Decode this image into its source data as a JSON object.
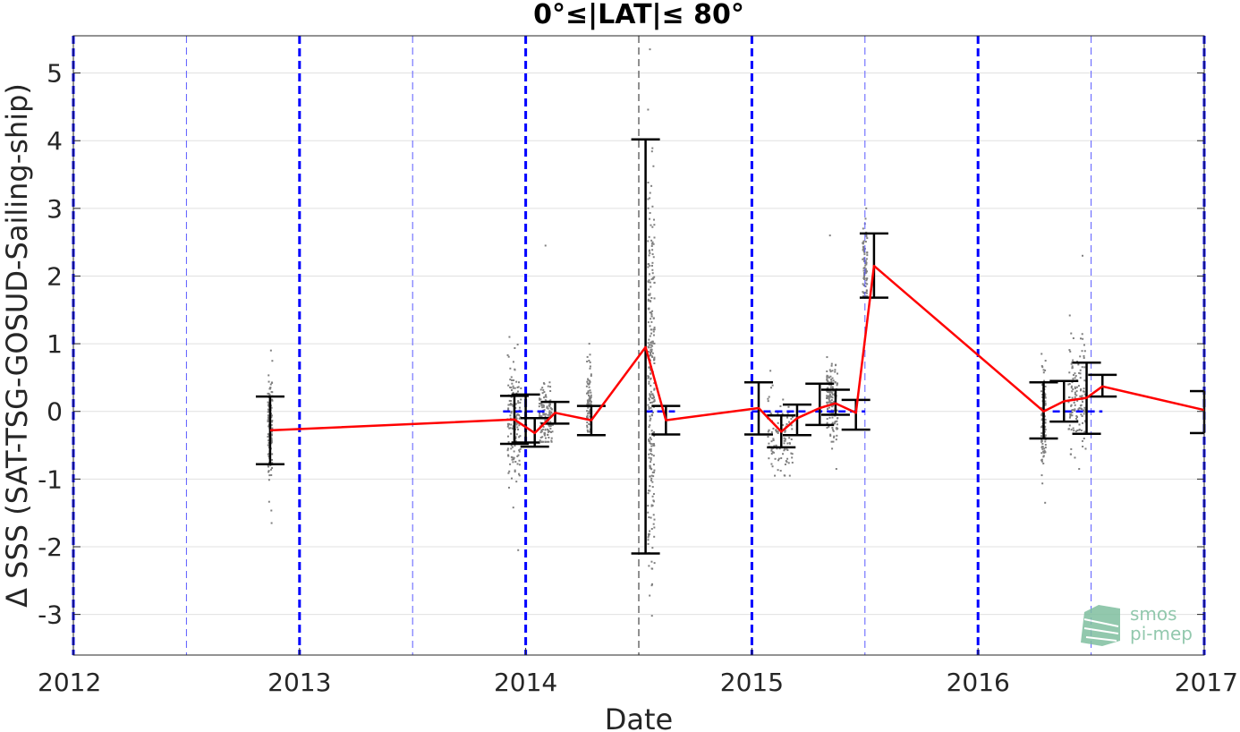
{
  "chart_data": {
    "type": "scatter",
    "title": "0°≤|LAT|≤ 80°",
    "xlabel": "Date",
    "ylabel": "Δ SSS (SAT-TSG-GOSUD-Sailing-ship)",
    "xlim": [
      2012,
      2017
    ],
    "ylim": [
      -3.6,
      5.55
    ],
    "xticks": [
      2012,
      2013,
      2014,
      2015,
      2016,
      2017
    ],
    "xtick_labels": [
      "2012",
      "2013",
      "2014",
      "2015",
      "2016",
      "2017"
    ],
    "yticks": [
      -3,
      -2,
      -1,
      0,
      1,
      2,
      3,
      4,
      5
    ],
    "ytick_labels": [
      "-3",
      "-2",
      "-1",
      "0",
      "1",
      "2",
      "3",
      "4",
      "5"
    ],
    "grid": "horizontal",
    "year_lines": [
      2012,
      2013,
      2014,
      2015,
      2016,
      2017
    ],
    "half_year_lines": [
      2012.5,
      2013.5,
      2014.5,
      2015.5,
      2016.5
    ],
    "mean_series": {
      "x": [
        2012.87,
        2013.95,
        2014.04,
        2014.13,
        2014.29,
        2014.53,
        2014.62,
        2015.03,
        2015.13,
        2015.2,
        2015.3,
        2015.37,
        2015.46,
        2015.54,
        2016.29,
        2016.38,
        2016.48,
        2016.55,
        2017.0
      ],
      "y": [
        -0.28,
        -0.12,
        -0.32,
        -0.02,
        -0.13,
        0.95,
        -0.13,
        0.05,
        -0.3,
        -0.1,
        0.05,
        0.12,
        -0.02,
        2.15,
        0.0,
        0.15,
        0.2,
        0.37,
        0.02
      ]
    },
    "error_bars": [
      {
        "x": 2012.87,
        "low": -0.78,
        "high": 0.22
      },
      {
        "x": 2013.95,
        "low": -0.48,
        "high": 0.23
      },
      {
        "x": 2014.0,
        "low": -0.46,
        "high": 0.25
      },
      {
        "x": 2014.04,
        "low": -0.52,
        "high": -0.1
      },
      {
        "x": 2014.13,
        "low": -0.18,
        "high": 0.14
      },
      {
        "x": 2014.29,
        "low": -0.35,
        "high": 0.08
      },
      {
        "x": 2014.53,
        "low": -2.1,
        "high": 4.02
      },
      {
        "x": 2014.62,
        "low": -0.34,
        "high": 0.08
      },
      {
        "x": 2015.03,
        "low": -0.34,
        "high": 0.43
      },
      {
        "x": 2015.13,
        "low": -0.53,
        "high": -0.06
      },
      {
        "x": 2015.2,
        "low": -0.35,
        "high": 0.1
      },
      {
        "x": 2015.3,
        "low": -0.2,
        "high": 0.41
      },
      {
        "x": 2015.37,
        "low": -0.05,
        "high": 0.32
      },
      {
        "x": 2015.46,
        "low": -0.27,
        "high": 0.17
      },
      {
        "x": 2015.54,
        "low": 1.68,
        "high": 2.63
      },
      {
        "x": 2016.29,
        "low": -0.4,
        "high": 0.43
      },
      {
        "x": 2016.38,
        "low": -0.15,
        "high": 0.45
      },
      {
        "x": 2016.48,
        "low": -0.33,
        "high": 0.72
      },
      {
        "x": 2016.55,
        "low": 0.22,
        "high": 0.54
      },
      {
        "x": 2017.0,
        "low": -0.32,
        "high": 0.3
      }
    ],
    "median_segments": [
      {
        "x0": 2013.9,
        "x1": 2014.0,
        "y": 0.0
      },
      {
        "x0": 2014.0,
        "x1": 2014.1,
        "y": 0.0
      },
      {
        "x0": 2014.53,
        "x1": 2014.66,
        "y": 0.0
      },
      {
        "x0": 2015.0,
        "x1": 2015.24,
        "y": 0.0
      },
      {
        "x0": 2015.28,
        "x1": 2015.5,
        "y": 0.0
      },
      {
        "x0": 2016.33,
        "x1": 2016.55,
        "y": 0.0
      }
    ],
    "scatter_clusters": [
      {
        "x0": 2012.86,
        "x1": 2012.88,
        "ymin": -1.65,
        "ymax": 0.9,
        "center": -0.28,
        "spread": 0.45
      },
      {
        "x0": 2013.92,
        "x1": 2013.98,
        "ymin": -2.05,
        "ymax": 1.1,
        "center": -0.12,
        "spread": 0.45
      },
      {
        "x0": 2014.06,
        "x1": 2014.12,
        "ymin": -0.45,
        "ymax": 2.45,
        "center": -0.1,
        "spread": 0.25
      },
      {
        "x0": 2014.27,
        "x1": 2014.29,
        "ymin": -0.3,
        "ymax": 1.0,
        "center": 0.1,
        "spread": 0.3
      },
      {
        "x0": 2014.54,
        "x1": 2014.57,
        "ymin": -3.02,
        "ymax": 5.35,
        "center": 0.4,
        "spread": 1.5
      },
      {
        "x0": 2015.07,
        "x1": 2015.18,
        "ymin": -0.95,
        "ymax": 0.6,
        "center": -0.35,
        "spread": 0.25
      },
      {
        "x0": 2015.33,
        "x1": 2015.38,
        "ymin": -0.85,
        "ymax": 2.6,
        "center": 0.15,
        "spread": 0.3
      },
      {
        "x0": 2015.49,
        "x1": 2015.51,
        "ymin": 1.7,
        "ymax": 3.0,
        "center": 2.1,
        "spread": 0.4
      },
      {
        "x0": 2016.28,
        "x1": 2016.3,
        "ymin": -1.35,
        "ymax": 0.85,
        "center": -0.1,
        "spread": 0.35
      },
      {
        "x0": 2016.4,
        "x1": 2016.48,
        "ymin": -0.85,
        "ymax": 2.3,
        "center": 0.25,
        "spread": 0.4
      }
    ],
    "colors": {
      "mean_line": "#ff0000",
      "error_bar": "#000000",
      "scatter": "#808080",
      "year_line": "#0000ff",
      "half_year_line": "#5a5aff",
      "grid": "#e0e0e0",
      "logo": "#7fbf9f"
    }
  },
  "logo": {
    "line1": "smos",
    "line2": "pi-mep"
  }
}
